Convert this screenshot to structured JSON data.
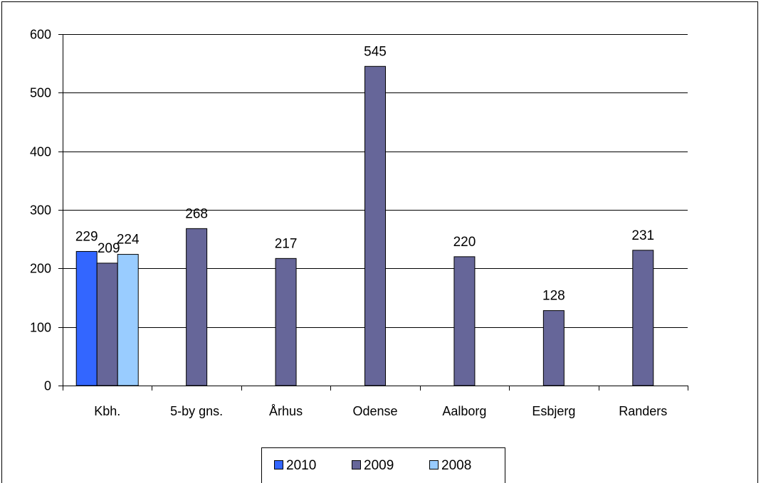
{
  "chart_data": {
    "type": "bar",
    "title": "",
    "xlabel": "",
    "ylabel": "",
    "categories": [
      "Kbh.",
      "5-by gns.",
      "Århus",
      "Odense",
      "Aalborg",
      "Esbjerg",
      "Randers"
    ],
    "series": [
      {
        "name": "2010",
        "values": [
          229,
          null,
          null,
          null,
          null,
          null,
          null
        ],
        "color": "#3366ff"
      },
      {
        "name": "2009",
        "values": [
          209,
          268,
          217,
          545,
          220,
          128,
          231
        ],
        "color": "#666699"
      },
      {
        "name": "2008",
        "values": [
          224,
          null,
          null,
          null,
          null,
          null,
          null
        ],
        "color": "#99ccff"
      }
    ],
    "ylim": [
      0,
      600
    ],
    "yticks": [
      0,
      100,
      200,
      300,
      400,
      500,
      600
    ],
    "grid": true,
    "legend_position": "bottom",
    "data_labels": true
  }
}
